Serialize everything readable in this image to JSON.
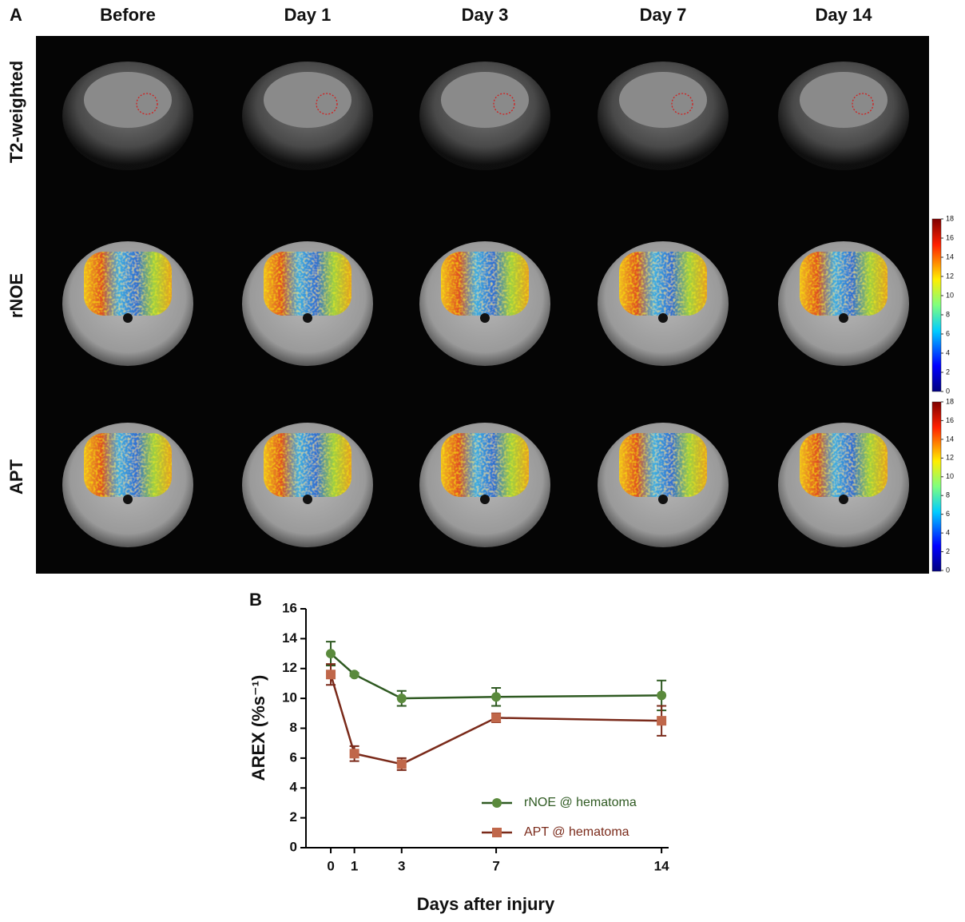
{
  "panel_a": {
    "label": "A",
    "columns": [
      "Before",
      "Day 1",
      "Day 3",
      "Day 7",
      "Day 14"
    ],
    "rows": [
      "T2-weighted",
      "rNOE",
      "APT"
    ],
    "colorbar": {
      "lim": [
        0,
        18
      ],
      "ticks": [
        0,
        2,
        4,
        6,
        8,
        10,
        12,
        14,
        16,
        18
      ]
    }
  },
  "chart_data": {
    "type": "line",
    "panel_label": "B",
    "xlabel": "Days after injury",
    "ylabel": "AREX (%s⁻¹)",
    "x": [
      0,
      1,
      3,
      7,
      14
    ],
    "xlim": [
      -1.05,
      14.3
    ],
    "xticks": [
      0,
      1,
      3,
      7,
      14
    ],
    "ylim": [
      0,
      16
    ],
    "yticks": [
      0,
      2,
      4,
      6,
      8,
      10,
      12,
      14,
      16
    ],
    "legend": "lower right",
    "series": [
      {
        "name": "rNOE @ hematoma",
        "color": "#5a8a3c",
        "line_color": "#2f5a22",
        "marker": "circle",
        "values": [
          13.0,
          11.6,
          10.0,
          10.1,
          10.2
        ],
        "errors": [
          0.8,
          0.1,
          0.5,
          0.6,
          1.0
        ]
      },
      {
        "name": "APT @ hematoma",
        "color": "#c0674a",
        "line_color": "#7a2a1a",
        "marker": "square",
        "values": [
          11.6,
          6.3,
          5.6,
          8.7,
          8.5
        ],
        "errors": [
          0.7,
          0.5,
          0.4,
          0.3,
          1.0
        ]
      }
    ]
  }
}
